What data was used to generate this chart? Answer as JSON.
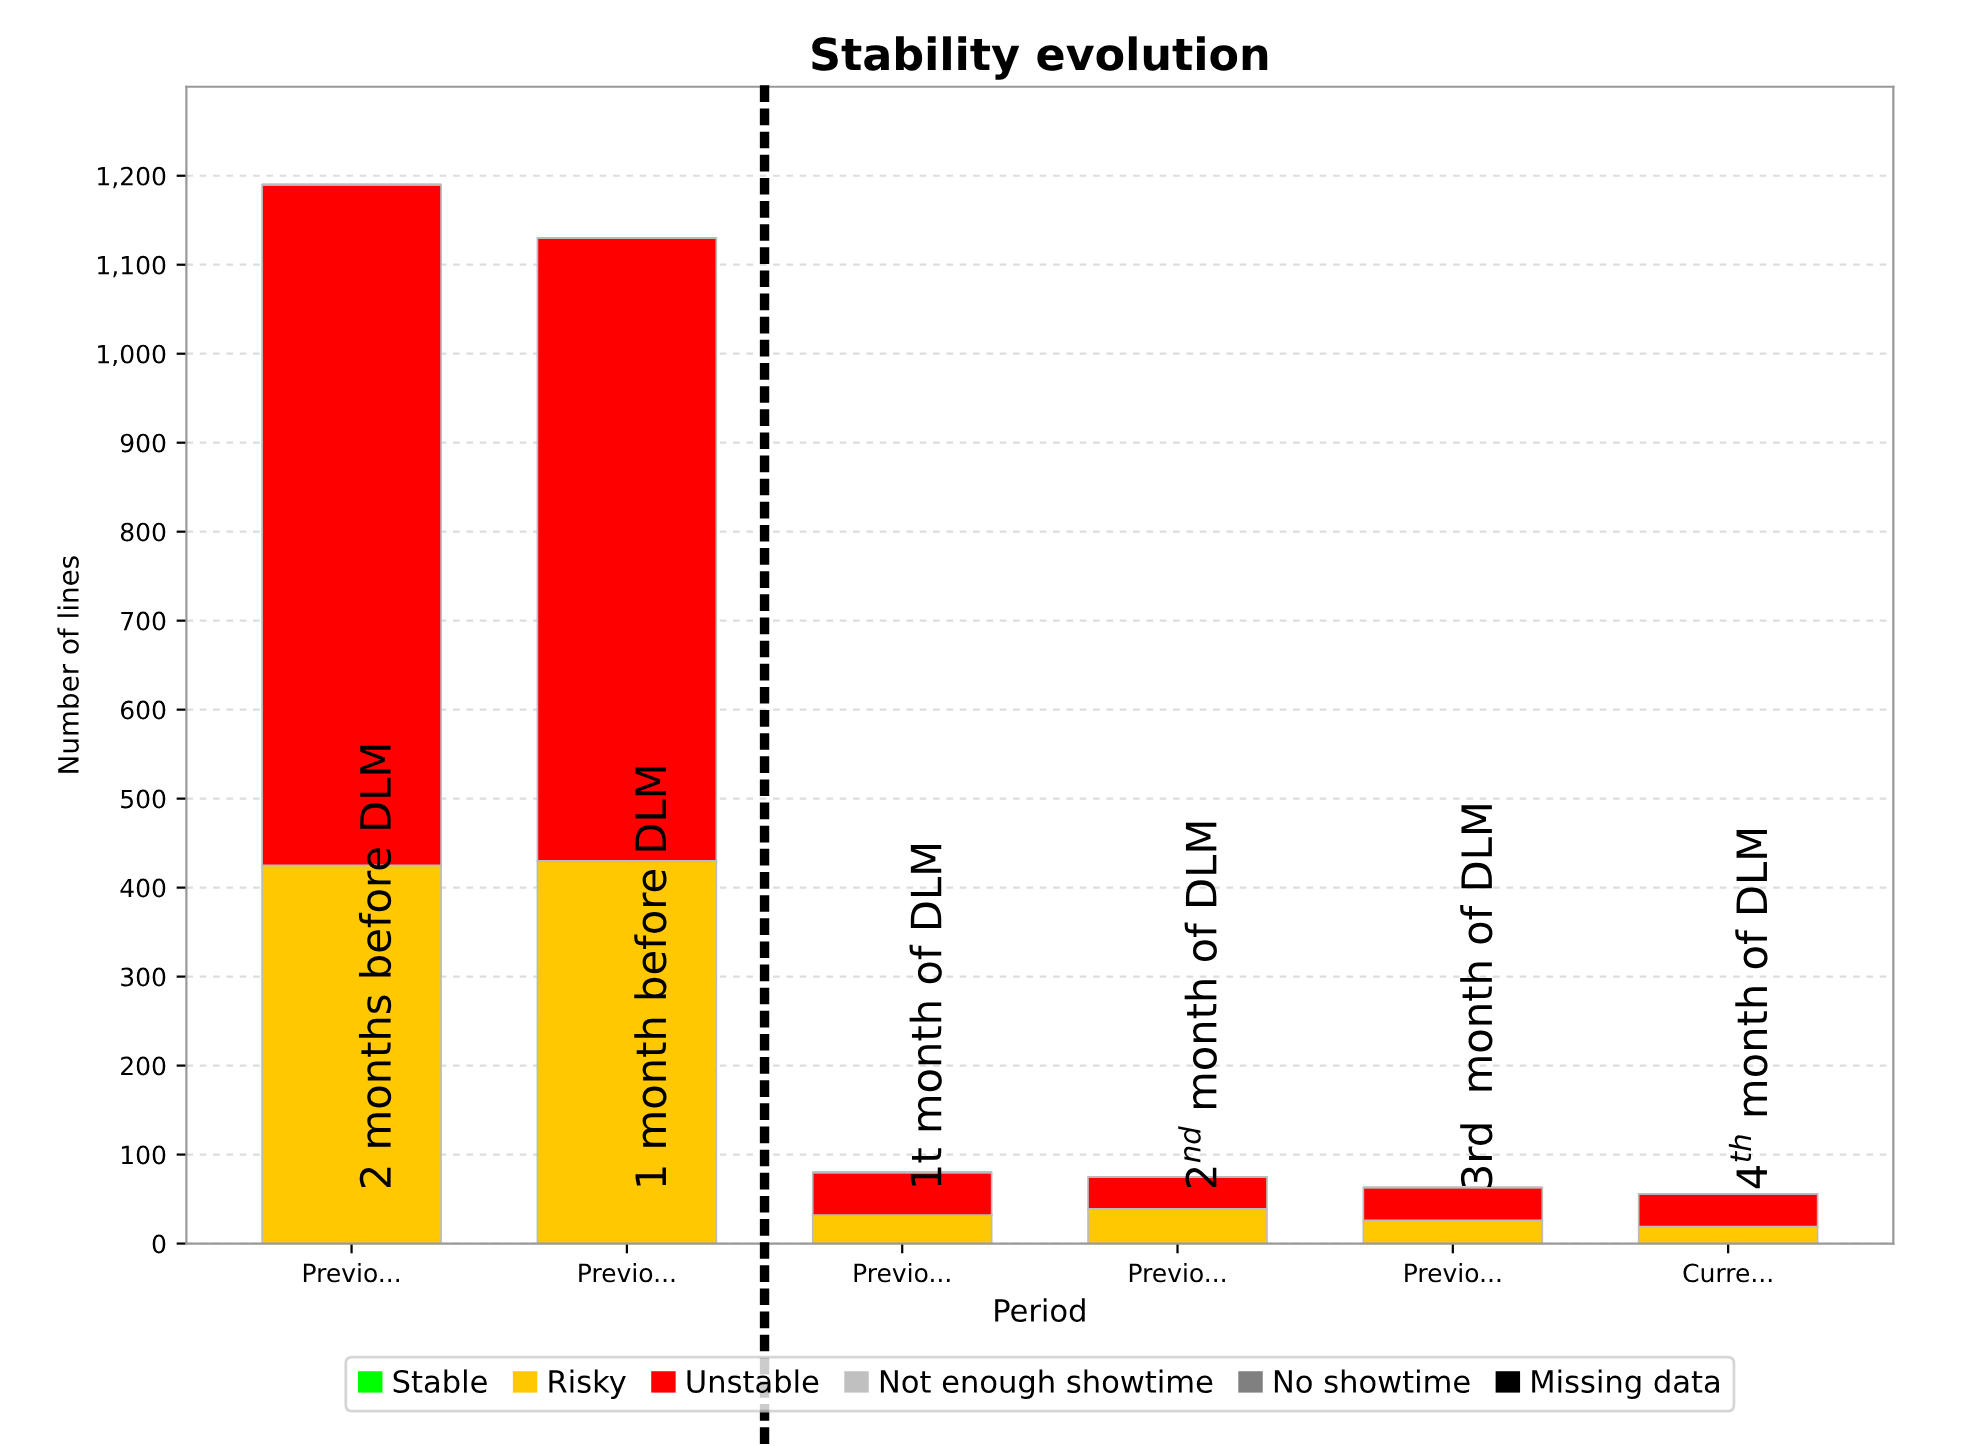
{
  "chart_data": {
    "type": "bar",
    "title": "Stability evolution",
    "xlabel": "Period",
    "ylabel": "Number of lines",
    "categories": [
      "Previo...",
      "Previo...",
      "Previo...",
      "Previo...",
      "Previo...",
      "Curre..."
    ],
    "stacked": true,
    "series": [
      {
        "name": "Stable",
        "color": "#00ff00",
        "values": [
          0,
          0,
          0,
          0,
          0,
          0
        ]
      },
      {
        "name": "Risky",
        "color": "#ffc800",
        "values": [
          425,
          430,
          32,
          39,
          26,
          19
        ]
      },
      {
        "name": "Unstable",
        "color": "#ff0000",
        "values": [
          765,
          700,
          48,
          36,
          37,
          37
        ]
      },
      {
        "name": "Not enough showtime",
        "color": "#c0c0c0",
        "values": [
          0,
          0,
          0,
          0,
          0,
          0
        ]
      },
      {
        "name": "No showtime",
        "color": "#808080",
        "values": [
          0,
          0,
          0,
          0,
          0,
          0
        ]
      },
      {
        "name": "Missing data",
        "color": "#000000",
        "values": [
          0,
          0,
          0,
          0,
          0,
          0
        ]
      }
    ],
    "ylim": [
      0,
      1300
    ],
    "yticks": [
      {
        "value": 0,
        "label": "0"
      },
      {
        "value": 100,
        "label": "100"
      },
      {
        "value": 200,
        "label": "200"
      },
      {
        "value": 300,
        "label": "300"
      },
      {
        "value": 400,
        "label": "400"
      },
      {
        "value": 500,
        "label": "500"
      },
      {
        "value": 600,
        "label": "600"
      },
      {
        "value": 700,
        "label": "700"
      },
      {
        "value": 800,
        "label": "800"
      },
      {
        "value": 900,
        "label": "900"
      },
      {
        "value": 1000,
        "label": "1,000"
      },
      {
        "value": 1100,
        "label": "1,100"
      },
      {
        "value": 1200,
        "label": "1,200"
      }
    ],
    "grid": "y",
    "legend": "bottom",
    "annotations": [
      "2 months before DLM",
      "1 month before DLM",
      "1t month of DLM",
      "2$^{nd}$ month of DLM",
      "3rd  month of DLM",
      "4$^{th}$ month of DLM"
    ]
  }
}
